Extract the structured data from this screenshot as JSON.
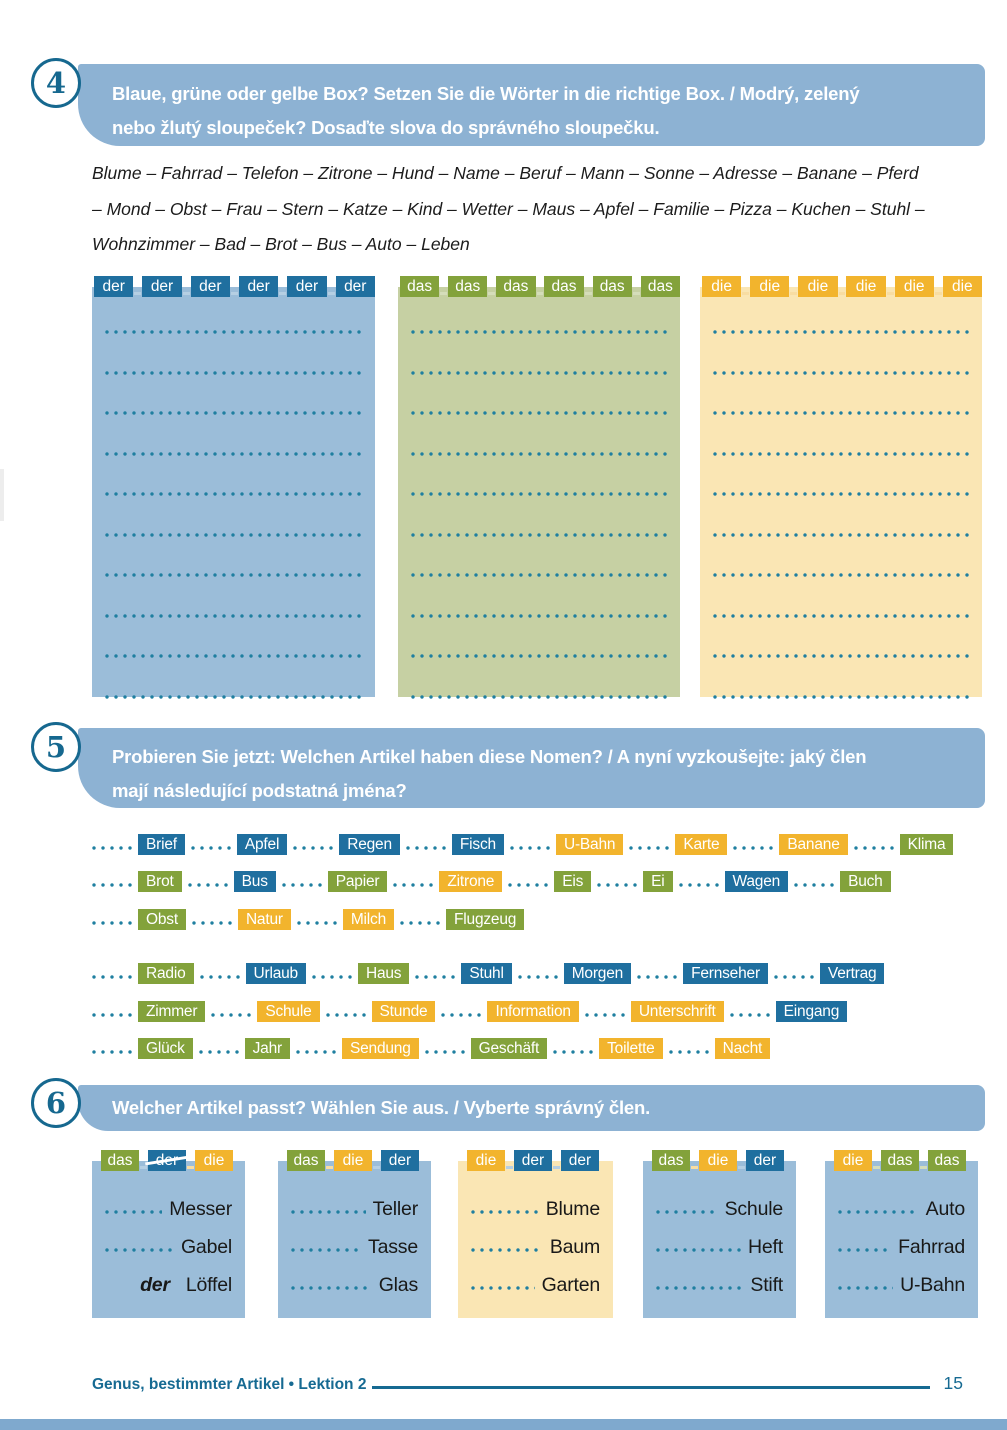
{
  "colors": {
    "accent_teal": "#16688f",
    "header_bar_blue": "#8db2d3",
    "tag_blue": "#1f6f9f",
    "tag_green": "#83a23b",
    "tag_yellow": "#f2b42d",
    "box_blue": "#9bbdd9",
    "box_green": "#c6d0a3",
    "box_yellow": "#fae6b4",
    "dots_teal": "#1f7fa0"
  },
  "exercise4": {
    "number": "4",
    "title_lines": {
      "0": "Blaue, grüne oder gelbe Box? Setzen Sie die Wörter in die richtige Box. / Modrý, zelený",
      "1": "nebo žlutý sloupeček? Dosaďte slova do správného sloupečku."
    },
    "word_list": "Blume – Fahrrad – Telefon – Zitrone – Hund – Name – Beruf – Mann – Sonne – Adresse – Banane – Pferd – Mond – Obst – Frau – Stern – Katze – Kind – Wetter – Maus – Apfel – Familie – Pizza – Kuchen – Stuhl – Wohnzimmer – Bad – Brot – Bus – Auto – Leben",
    "sort_boxes": [
      {
        "article": "der",
        "color": "blue",
        "tab_count": 6,
        "line_count": 10
      },
      {
        "article": "das",
        "color": "green",
        "tab_count": 6,
        "line_count": 10
      },
      {
        "article": "die",
        "color": "yellow",
        "tab_count": 6,
        "line_count": 10
      }
    ]
  },
  "exercise5": {
    "number": "5",
    "title_lines": {
      "0": "Probieren Sie jetzt: Welchen Artikel haben diese Nomen? / A nyní vyzkoušejte: jaký člen",
      "1": "mají následující podstatná jména?"
    },
    "word_groups": [
      [
        [
          {
            "word": "Brief",
            "color": "blue"
          },
          {
            "word": "Apfel",
            "color": "blue"
          },
          {
            "word": "Regen",
            "color": "blue"
          },
          {
            "word": "Fisch",
            "color": "blue"
          },
          {
            "word": "U-Bahn",
            "color": "yellow"
          },
          {
            "word": "Karte",
            "color": "yellow"
          },
          {
            "word": "Banane",
            "color": "yellow"
          },
          {
            "word": "Klima",
            "color": "green"
          }
        ],
        [
          {
            "word": "Brot",
            "color": "green"
          },
          {
            "word": "Bus",
            "color": "blue"
          },
          {
            "word": "Papier",
            "color": "green"
          },
          {
            "word": "Zitrone",
            "color": "yellow"
          },
          {
            "word": "Eis",
            "color": "green"
          },
          {
            "word": "Ei",
            "color": "green"
          },
          {
            "word": "Wagen",
            "color": "blue"
          },
          {
            "word": "Buch",
            "color": "green"
          }
        ],
        [
          {
            "word": "Obst",
            "color": "green"
          },
          {
            "word": "Natur",
            "color": "yellow"
          },
          {
            "word": "Milch",
            "color": "yellow"
          },
          {
            "word": "Flugzeug",
            "color": "green"
          }
        ]
      ],
      [
        [
          {
            "word": "Radio",
            "color": "green"
          },
          {
            "word": "Urlaub",
            "color": "blue"
          },
          {
            "word": "Haus",
            "color": "green"
          },
          {
            "word": "Stuhl",
            "color": "blue"
          },
          {
            "word": "Morgen",
            "color": "blue"
          },
          {
            "word": "Fernseher",
            "color": "blue"
          },
          {
            "word": "Vertrag",
            "color": "blue"
          }
        ],
        [
          {
            "word": "Zimmer",
            "color": "green"
          },
          {
            "word": "Schule",
            "color": "yellow"
          },
          {
            "word": "Stunde",
            "color": "yellow"
          },
          {
            "word": "Information",
            "color": "yellow"
          },
          {
            "word": "Unterschrift",
            "color": "yellow"
          },
          {
            "word": "Eingang",
            "color": "blue"
          }
        ],
        [
          {
            "word": "Glück",
            "color": "green"
          },
          {
            "word": "Jahr",
            "color": "green"
          },
          {
            "word": "Sendung",
            "color": "yellow"
          },
          {
            "word": "Geschäft",
            "color": "green"
          },
          {
            "word": "Toilette",
            "color": "yellow"
          },
          {
            "word": "Nacht",
            "color": "yellow"
          }
        ]
      ]
    ]
  },
  "exercise6": {
    "number": "6",
    "title_lines": {
      "0": "Welcher Artikel passt? Wählen Sie aus. / Vyberte správný člen."
    },
    "choice_boxes": [
      {
        "bg": "blue",
        "tabs": [
          {
            "label": "das",
            "color": "green",
            "struck": false
          },
          {
            "label": "der",
            "color": "blue",
            "struck": true
          },
          {
            "label": "die",
            "color": "yellow",
            "struck": false
          }
        ],
        "items": [
          {
            "answer": "",
            "word": "Messer"
          },
          {
            "answer": "",
            "word": "Gabel"
          },
          {
            "answer": "der",
            "word": "Löffel"
          }
        ]
      },
      {
        "bg": "blue",
        "tabs": [
          {
            "label": "das",
            "color": "green",
            "struck": false
          },
          {
            "label": "die",
            "color": "yellow",
            "struck": false
          },
          {
            "label": "der",
            "color": "blue",
            "struck": false
          }
        ],
        "items": [
          {
            "answer": "",
            "word": "Teller"
          },
          {
            "answer": "",
            "word": "Tasse"
          },
          {
            "answer": "",
            "word": "Glas"
          }
        ]
      },
      {
        "bg": "yellow",
        "tabs": [
          {
            "label": "die",
            "color": "yellow",
            "struck": false
          },
          {
            "label": "der",
            "color": "blue",
            "struck": false
          },
          {
            "label": "der",
            "color": "blue",
            "struck": false
          }
        ],
        "items": [
          {
            "answer": "",
            "word": "Blume"
          },
          {
            "answer": "",
            "word": "Baum"
          },
          {
            "answer": "",
            "word": "Garten"
          }
        ]
      },
      {
        "bg": "blue",
        "tabs": [
          {
            "label": "das",
            "color": "green",
            "struck": false
          },
          {
            "label": "die",
            "color": "yellow",
            "struck": false
          },
          {
            "label": "der",
            "color": "blue",
            "struck": false
          }
        ],
        "items": [
          {
            "answer": "",
            "word": "Schule"
          },
          {
            "answer": "",
            "word": "Heft"
          },
          {
            "answer": "",
            "word": "Stift"
          }
        ]
      },
      {
        "bg": "blue",
        "tabs": [
          {
            "label": "die",
            "color": "yellow",
            "struck": false
          },
          {
            "label": "das",
            "color": "green",
            "struck": false
          },
          {
            "label": "das",
            "color": "green",
            "struck": false
          }
        ],
        "items": [
          {
            "answer": "",
            "word": "Auto"
          },
          {
            "answer": "",
            "word": "Fahrrad"
          },
          {
            "answer": "",
            "word": "U-Bahn"
          }
        ]
      }
    ]
  },
  "footer": {
    "section_title": "Genus, bestimmter Artikel • Lektion 2",
    "page_number": "15"
  }
}
